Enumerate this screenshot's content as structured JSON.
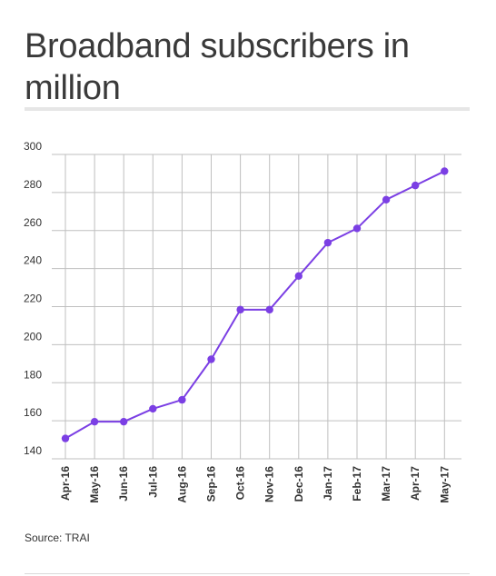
{
  "header": {
    "title": "Broadband subscribers in million"
  },
  "footer": {
    "source": "Source: TRAI"
  },
  "colors": {
    "line": "#7b3fe4",
    "grid": "#bfbfbf",
    "text": "#333333"
  },
  "chart_data": {
    "type": "line",
    "title": "Broadband subscribers in million",
    "xlabel": "",
    "ylabel": "",
    "categories": [
      "Apr-16",
      "May-16",
      "Jun-16",
      "Jul-16",
      "Aug-16",
      "Sep-16",
      "Oct-16",
      "Nov-16",
      "Dec-16",
      "Jan-17",
      "Feb-17",
      "Mar-17",
      "Apr-17",
      "May-17"
    ],
    "series": [
      {
        "values": [
          150.7,
          159.5,
          159.5,
          166.3,
          171.0,
          192.3,
          218.4,
          218.4,
          236.1,
          253.6,
          261.1,
          276.2,
          283.7,
          291.2
        ]
      }
    ],
    "ylim": [
      140,
      300
    ],
    "yticks": [
      140,
      160,
      180,
      200,
      220,
      240,
      260,
      280,
      300
    ],
    "grid": true,
    "legend": "none"
  }
}
